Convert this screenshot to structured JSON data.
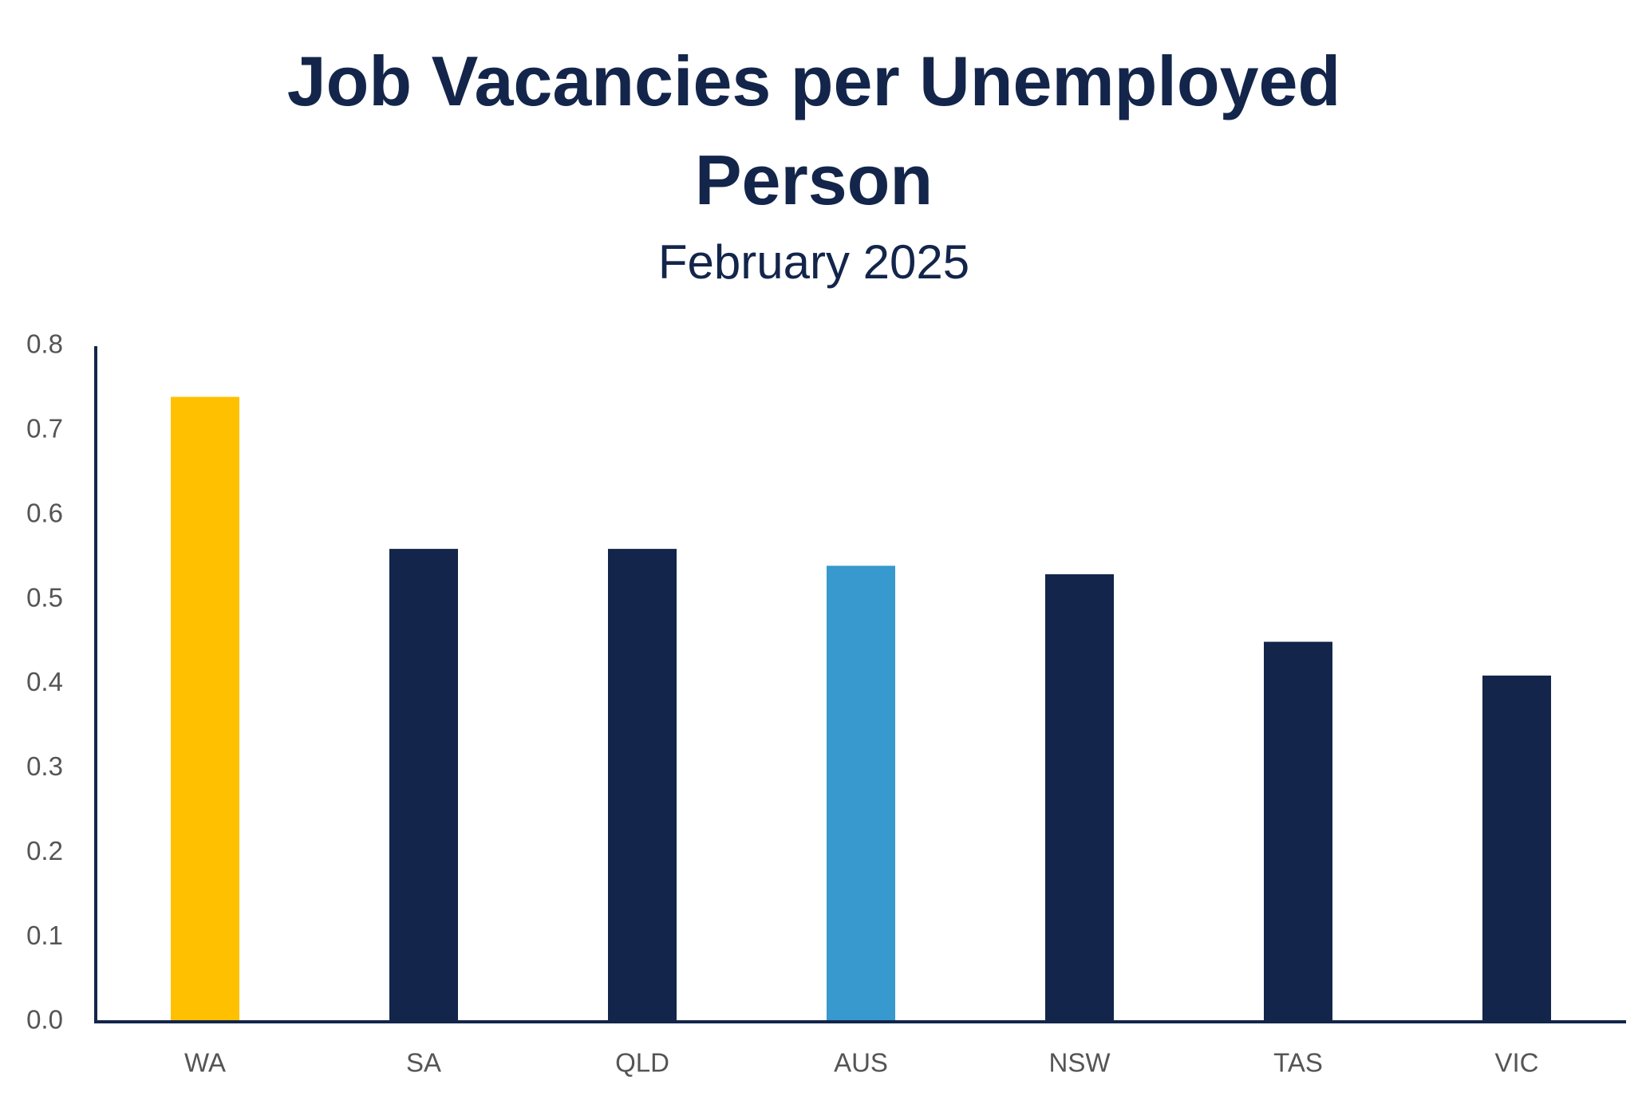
{
  "chart_data": {
    "type": "bar",
    "title": "Job Vacancies per Unemployed Person",
    "subtitle": "February 2025",
    "categories": [
      "WA",
      "SA",
      "QLD",
      "AUS",
      "NSW",
      "TAS",
      "VIC"
    ],
    "values": [
      0.74,
      0.56,
      0.56,
      0.54,
      0.53,
      0.45,
      0.41
    ],
    "colors": [
      "#ffc000",
      "#13254a",
      "#13254a",
      "#3799cd",
      "#13254a",
      "#13254a",
      "#13254a"
    ],
    "ylim": [
      0,
      0.8
    ],
    "yticks": [
      {
        "value": 0,
        "label": "0.0"
      },
      0.1,
      0.2,
      0.3,
      0.4,
      0.5,
      0.6,
      0.7,
      0.8
    ],
    "grid": false
  }
}
